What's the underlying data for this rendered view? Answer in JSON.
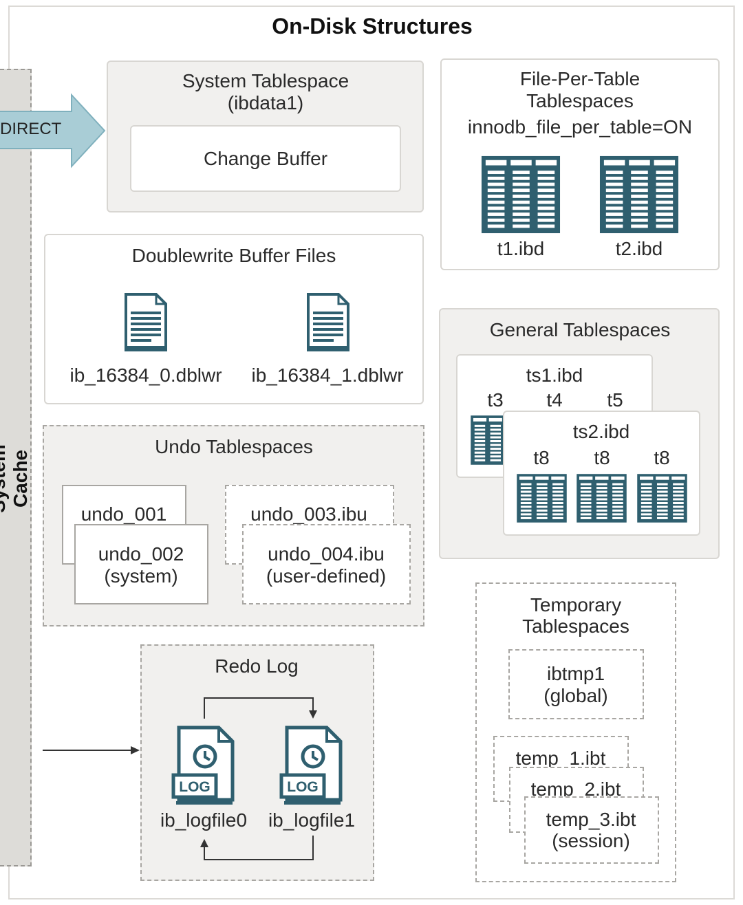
{
  "title": "On-Disk Structures",
  "system_cache": {
    "label": "System Cache",
    "direct_label": "DIRECT"
  },
  "system_tablespace": {
    "title_line1": "System Tablespace",
    "title_line2": "(ibdata1)",
    "change_buffer": "Change Buffer"
  },
  "doublewrite": {
    "title": "Doublewrite Buffer Files",
    "files": [
      "ib_16384_0.dblwr",
      "ib_16384_1.dblwr"
    ]
  },
  "file_per_table": {
    "title_line1": "File-Per-Table",
    "title_line2": "Tablespaces",
    "setting": "innodb_file_per_table=ON",
    "files": [
      "t1.ibd",
      "t2.ibd"
    ]
  },
  "general": {
    "title": "General Tablespaces",
    "ts1": {
      "name": "ts1.ibd",
      "tables": [
        "t3",
        "t4",
        "t5"
      ]
    },
    "ts2": {
      "name": "ts2.ibd",
      "tables": [
        "t8",
        "t8",
        "t8"
      ]
    }
  },
  "undo": {
    "title": "Undo Tablespaces",
    "undo_001": "undo_001",
    "undo_002_line1": "undo_002",
    "undo_002_line2": "(system)",
    "undo_003": "undo_003.ibu",
    "undo_004_line1": "undo_004.ibu",
    "undo_004_line2": "(user-defined)"
  },
  "redo": {
    "title": "Redo Log",
    "files": [
      "ib_logfile0",
      "ib_logfile1"
    ],
    "badge": "LOG"
  },
  "temporary": {
    "title_line1": "Temporary",
    "title_line2": "Tablespaces",
    "ibtmp1_line1": "ibtmp1",
    "ibtmp1_line2": "(global)",
    "temp_1": "temp_1.ibt",
    "temp_2": "temp_2.ibt",
    "temp_3_line1": "temp_3.ibt",
    "temp_3_line2": "(session)"
  },
  "colors": {
    "icon_teal": "#2f5f6f",
    "arrow_fill": "#a9cdd6",
    "panel_gray": "#f1f0ee",
    "cache_gray": "#dddcd8"
  }
}
